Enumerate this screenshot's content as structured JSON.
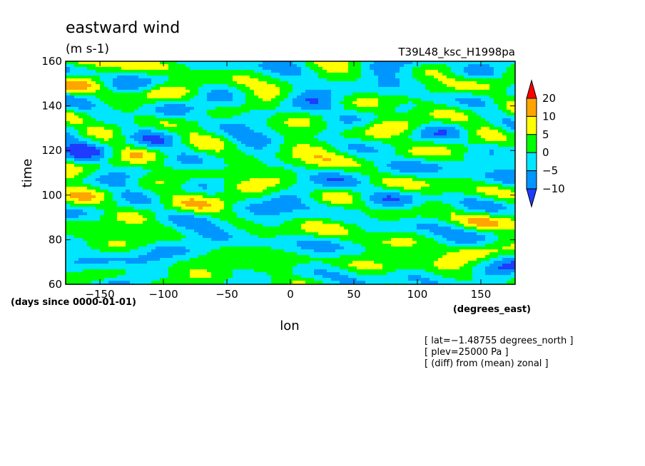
{
  "chart_data": {
    "type": "heatmap",
    "title": "eastward wind",
    "units": "(m s-1)",
    "run_label": "T39L48_ksc_H1998pa",
    "xlabel": "lon",
    "ylabel": "time",
    "x_units": "(degrees_east)",
    "y_units": "(days since 0000-01-01)",
    "xlim": [
      -177,
      177
    ],
    "ylim": [
      60,
      160
    ],
    "xticks": [
      -150,
      -100,
      -50,
      0,
      50,
      100,
      150
    ],
    "xtick_labels": [
      "−150",
      "−100",
      "−50",
      "0",
      "50",
      "100",
      "150"
    ],
    "yticks": [
      60,
      80,
      100,
      120,
      140,
      160
    ],
    "ytick_labels": [
      "60",
      "80",
      "100",
      "120",
      "140",
      "160"
    ],
    "colorbar": {
      "levels": [
        -10,
        -5,
        0,
        5,
        10,
        20
      ],
      "level_labels": [
        "−10",
        "−5",
        "0",
        "5",
        "10",
        "20"
      ],
      "colors": [
        "#1e3cff",
        "#0096ff",
        "#00e6ff",
        "#00ff00",
        "#ffff00",
        "#ffa500",
        "#ff0000"
      ],
      "extend": "both"
    },
    "notes": [
      "[ lat=−1.48755 degrees_north ]",
      "[ plev=25000 Pa ]",
      "[ (diff) from (mean) zonal ]"
    ],
    "field_description": "zonal-time section of eastward wind anomaly; values mostly within −10..10 m/s with scattered 10..20 patches"
  }
}
